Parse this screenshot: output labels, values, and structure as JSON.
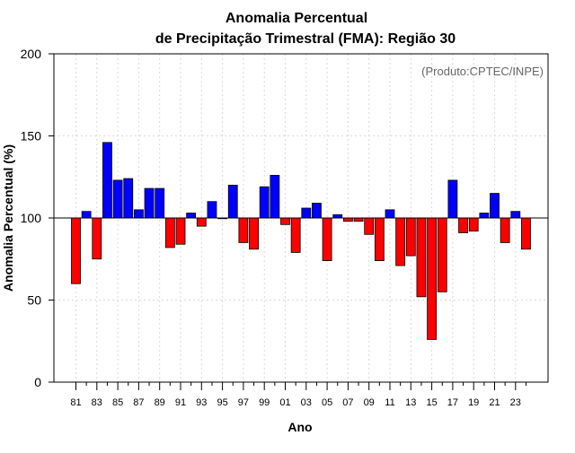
{
  "chart_data": {
    "type": "bar",
    "title_line1": "Anomalia Percentual",
    "title_line2": "de Precipitação Trimestral (FMA): Região 30",
    "xlabel": "Ano",
    "ylabel": "Anomalia Percentual (%)",
    "credit": "(Produto:CPTEC/INPE)",
    "baseline": 100,
    "ylim": [
      0,
      200
    ],
    "yticks": [
      0,
      50,
      100,
      150,
      200
    ],
    "grid": true,
    "categories": [
      "81",
      "82",
      "83",
      "84",
      "85",
      "86",
      "87",
      "88",
      "89",
      "90",
      "91",
      "92",
      "93",
      "94",
      "95",
      "96",
      "97",
      "98",
      "99",
      "00",
      "01",
      "02",
      "03",
      "04",
      "05",
      "06",
      "07",
      "08",
      "09",
      "10",
      "11",
      "12",
      "13",
      "14",
      "15",
      "16",
      "17",
      "18",
      "19",
      "20",
      "21",
      "22",
      "23",
      "24"
    ],
    "values": [
      60,
      104,
      75,
      146,
      123,
      124,
      105,
      118,
      118,
      82,
      84,
      103,
      95,
      110,
      100,
      120,
      85,
      81,
      119,
      126,
      96,
      79,
      106,
      109,
      74,
      102,
      98,
      98,
      90,
      74,
      105,
      71,
      77,
      52,
      26,
      55,
      123,
      91,
      92,
      103,
      115,
      85,
      104,
      81
    ],
    "xtick_labels": [
      "81",
      "83",
      "85",
      "87",
      "89",
      "91",
      "93",
      "95",
      "97",
      "99",
      "01",
      "03",
      "05",
      "07",
      "09",
      "11",
      "13",
      "15",
      "17",
      "19",
      "21",
      "23"
    ],
    "colors": {
      "above": "#0000ff",
      "below": "#ff0000",
      "outline": "#000000",
      "grid": "#d9d9d9",
      "credit": "#666666"
    }
  }
}
